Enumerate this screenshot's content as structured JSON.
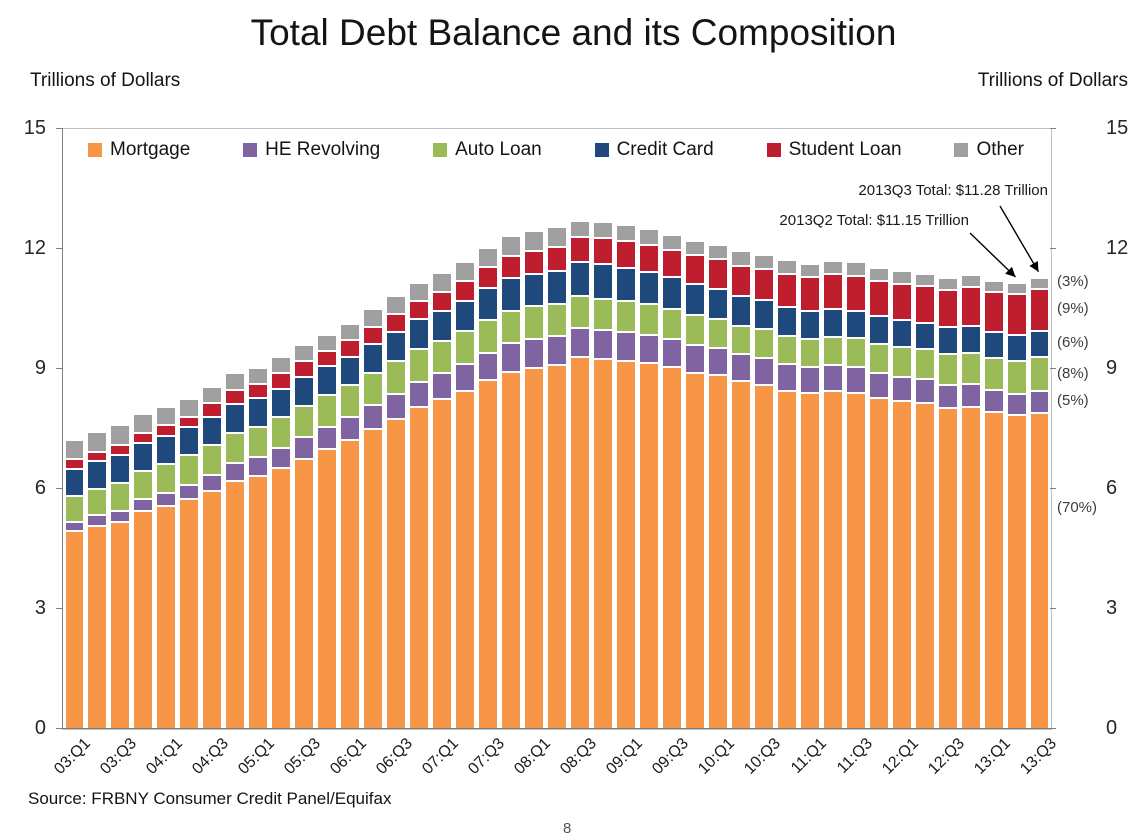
{
  "title": "Total Debt Balance and its Composition",
  "units_left": "Trillions of Dollars",
  "units_right": "Trillions of Dollars",
  "source": "Source: FRBNY Consumer Credit Panel/Equifax",
  "page_number": "8",
  "annotations": [
    {
      "text": "2013Q3 Total: $11.28 Trillion",
      "points_to": "13:Q3"
    },
    {
      "text": "2013Q2 Total: $11.15 Trillion",
      "points_to": "13:Q2"
    }
  ],
  "pct_labels": [
    {
      "text": "(3%)",
      "y": 11.14
    },
    {
      "text": "(9%)",
      "y": 10.47
    },
    {
      "text": "(6%)",
      "y": 9.62
    },
    {
      "text": "(8%)",
      "y": 8.86
    },
    {
      "text": "(5%)",
      "y": 8.17
    },
    {
      "text": "(70%)",
      "y": 5.5
    }
  ],
  "chart_data": {
    "type": "bar",
    "stacked": true,
    "title": "Total Debt Balance and its Composition",
    "xlabel": "",
    "ylabel": "Trillions of Dollars",
    "ylim": [
      0,
      15
    ],
    "yticks": [
      0,
      3,
      6,
      9,
      12,
      15
    ],
    "grid": false,
    "legend_position": "top-inside",
    "x_label_step": 2,
    "categories": [
      "03:Q1",
      "03:Q2",
      "03:Q3",
      "03:Q4",
      "04:Q1",
      "04:Q2",
      "04:Q3",
      "04:Q4",
      "05:Q1",
      "05:Q2",
      "05:Q3",
      "05:Q4",
      "06:Q1",
      "06:Q2",
      "06:Q3",
      "06:Q4",
      "07:Q1",
      "07:Q2",
      "07:Q3",
      "07:Q4",
      "08:Q1",
      "08:Q2",
      "08:Q3",
      "08:Q4",
      "09:Q1",
      "09:Q2",
      "09:Q3",
      "09:Q4",
      "10:Q1",
      "10:Q2",
      "10:Q3",
      "10:Q4",
      "11:Q1",
      "11:Q2",
      "11:Q3",
      "11:Q4",
      "12:Q1",
      "12:Q2",
      "12:Q3",
      "12:Q4",
      "13:Q1",
      "13:Q2",
      "13:Q3"
    ],
    "series": [
      {
        "name": "Mortgage",
        "color": "#F79646",
        "values": [
          4.94,
          5.08,
          5.18,
          5.45,
          5.58,
          5.75,
          5.95,
          6.2,
          6.33,
          6.53,
          6.76,
          6.99,
          7.22,
          7.5,
          7.76,
          8.05,
          8.24,
          8.46,
          8.72,
          8.93,
          9.03,
          9.09,
          9.29,
          9.26,
          9.2,
          9.14,
          9.04,
          8.91,
          8.84,
          8.69,
          8.61,
          8.45,
          8.4,
          8.44,
          8.4,
          8.27,
          8.19,
          8.15,
          8.03,
          8.06,
          7.93,
          7.84,
          7.9
        ]
      },
      {
        "name": "HE Revolving",
        "color": "#8064A2",
        "values": [
          0.24,
          0.26,
          0.28,
          0.3,
          0.33,
          0.36,
          0.4,
          0.44,
          0.47,
          0.5,
          0.53,
          0.56,
          0.58,
          0.6,
          0.62,
          0.63,
          0.65,
          0.67,
          0.69,
          0.71,
          0.72,
          0.73,
          0.73,
          0.71,
          0.72,
          0.72,
          0.71,
          0.7,
          0.69,
          0.68,
          0.67,
          0.67,
          0.66,
          0.66,
          0.65,
          0.63,
          0.61,
          0.59,
          0.57,
          0.56,
          0.55,
          0.54,
          0.54
        ]
      },
      {
        "name": "Auto Loan",
        "color": "#9BBB59",
        "values": [
          0.64,
          0.66,
          0.69,
          0.7,
          0.72,
          0.74,
          0.75,
          0.76,
          0.76,
          0.77,
          0.79,
          0.79,
          0.79,
          0.8,
          0.81,
          0.82,
          0.81,
          0.81,
          0.82,
          0.82,
          0.82,
          0.81,
          0.81,
          0.79,
          0.77,
          0.76,
          0.75,
          0.74,
          0.72,
          0.71,
          0.71,
          0.71,
          0.7,
          0.71,
          0.72,
          0.73,
          0.74,
          0.75,
          0.77,
          0.78,
          0.79,
          0.81,
          0.85
        ]
      },
      {
        "name": "Credit Card",
        "color": "#1F497D",
        "values": [
          0.69,
          0.69,
          0.69,
          0.7,
          0.7,
          0.7,
          0.71,
          0.72,
          0.71,
          0.71,
          0.72,
          0.73,
          0.72,
          0.73,
          0.74,
          0.76,
          0.75,
          0.77,
          0.79,
          0.82,
          0.81,
          0.82,
          0.85,
          0.87,
          0.84,
          0.81,
          0.79,
          0.78,
          0.75,
          0.74,
          0.73,
          0.73,
          0.7,
          0.69,
          0.69,
          0.7,
          0.68,
          0.67,
          0.67,
          0.68,
          0.66,
          0.67,
          0.67
        ]
      },
      {
        "name": "Student Loan",
        "color": "#BE1E2D",
        "values": [
          0.24,
          0.24,
          0.25,
          0.25,
          0.26,
          0.26,
          0.33,
          0.35,
          0.36,
          0.38,
          0.39,
          0.39,
          0.41,
          0.43,
          0.45,
          0.45,
          0.48,
          0.5,
          0.53,
          0.55,
          0.58,
          0.59,
          0.61,
          0.64,
          0.67,
          0.68,
          0.69,
          0.71,
          0.74,
          0.76,
          0.78,
          0.81,
          0.84,
          0.87,
          0.87,
          0.87,
          0.9,
          0.91,
          0.94,
          0.97,
          0.99,
          1.01,
          1.03
        ]
      },
      {
        "name": "Other",
        "color": "#A0A0A0",
        "values": [
          0.48,
          0.49,
          0.5,
          0.48,
          0.45,
          0.44,
          0.42,
          0.42,
          0.4,
          0.4,
          0.41,
          0.4,
          0.41,
          0.43,
          0.44,
          0.45,
          0.46,
          0.47,
          0.48,
          0.49,
          0.5,
          0.5,
          0.42,
          0.4,
          0.39,
          0.38,
          0.38,
          0.37,
          0.36,
          0.37,
          0.35,
          0.36,
          0.32,
          0.33,
          0.35,
          0.33,
          0.32,
          0.31,
          0.3,
          0.31,
          0.29,
          0.28,
          0.29
        ]
      }
    ]
  }
}
